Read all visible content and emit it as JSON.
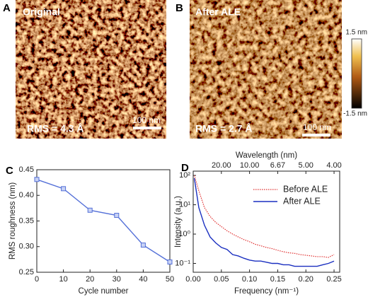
{
  "images": [
    {
      "label": "A",
      "title": "Original",
      "rms": "RMS = 4.3 Å",
      "scale_bar": "100 nm"
    },
    {
      "label": "B",
      "title": "After ALE",
      "rms": "RMS = 2.7 Å",
      "scale_bar": "100 nm"
    }
  ],
  "colorbar": {
    "max_label": "1.5 nm",
    "min_label": "-1.5 nm"
  },
  "chart_data": [
    {
      "type": "line",
      "label": "C",
      "x_label": "Cycle number",
      "y_label": "RMS roughness (nm)",
      "x": [
        0,
        10,
        20,
        30,
        40,
        50
      ],
      "values": [
        0.431,
        0.413,
        0.371,
        0.361,
        0.303,
        0.27
      ],
      "color": "#5470d8",
      "marker": "square",
      "xlim": [
        0,
        50
      ],
      "xticks": [
        0,
        10,
        20,
        30,
        40,
        50
      ],
      "ylim": [
        0.25,
        0.45
      ],
      "yticks": [
        0.25,
        {
          "value": 0.3,
          "label": "0.30"
        },
        0.35,
        {
          "value": 0.4,
          "label": "0.40"
        },
        0.45
      ]
    },
    {
      "type": "line",
      "label": "D",
      "x_label": "Frequency (nm⁻¹)",
      "y_label": "Intensity (a.u.)",
      "x2_label": "Wavelength (nm)",
      "yscale": "log",
      "legend": "upper right",
      "x": [
        0.002,
        0.01,
        0.02,
        0.03,
        0.04,
        0.05,
        0.06,
        0.07,
        0.08,
        0.09,
        0.1,
        0.11,
        0.12,
        0.13,
        0.14,
        0.15,
        0.16,
        0.17,
        0.18,
        0.19,
        0.2,
        0.21,
        0.22,
        0.23,
        0.24,
        0.25
      ],
      "series": [
        {
          "name": "Before ALE",
          "color": "#e03030",
          "dash": "dotted",
          "values": [
            100,
            30,
            8,
            4,
            2.5,
            1.8,
            1.3,
            1.0,
            0.8,
            0.65,
            0.55,
            0.45,
            0.4,
            0.35,
            0.32,
            0.28,
            0.25,
            0.23,
            0.22,
            0.2,
            0.19,
            0.18,
            0.17,
            0.17,
            0.16,
            0.2
          ]
        },
        {
          "name": "After ALE",
          "color": "#1a2fc0",
          "dash": "solid",
          "values": [
            80,
            8,
            2,
            0.8,
            0.5,
            0.35,
            0.3,
            0.2,
            0.18,
            0.15,
            0.13,
            0.12,
            0.12,
            0.11,
            0.1,
            0.1,
            0.09,
            0.09,
            0.08,
            0.08,
            0.08,
            0.08,
            0.08,
            0.09,
            0.1,
            0.12
          ]
        }
      ],
      "xlim": [
        0,
        0.26
      ],
      "xticks": [
        {
          "value": 0,
          "label": "0.00"
        },
        0.05,
        {
          "value": 0.1,
          "label": "0.10"
        },
        0.15,
        {
          "value": 0.2,
          "label": "0.20"
        },
        0.25
      ],
      "x2ticks": [
        {
          "value": 0.05,
          "label": "20.00"
        },
        {
          "value": 0.1,
          "label": "10.00"
        },
        {
          "value": 0.15,
          "label": "6.67"
        },
        {
          "value": 0.2,
          "label": "5.00"
        },
        {
          "value": 0.25,
          "label": "4.00"
        }
      ],
      "ylim": [
        0.05,
        140
      ],
      "yticks": [
        {
          "value": 0.1,
          "label": "10⁻¹"
        },
        {
          "value": 1,
          "label": "10⁰"
        },
        {
          "value": 10,
          "label": "10¹"
        },
        {
          "value": 100,
          "label": "10²"
        }
      ]
    }
  ]
}
